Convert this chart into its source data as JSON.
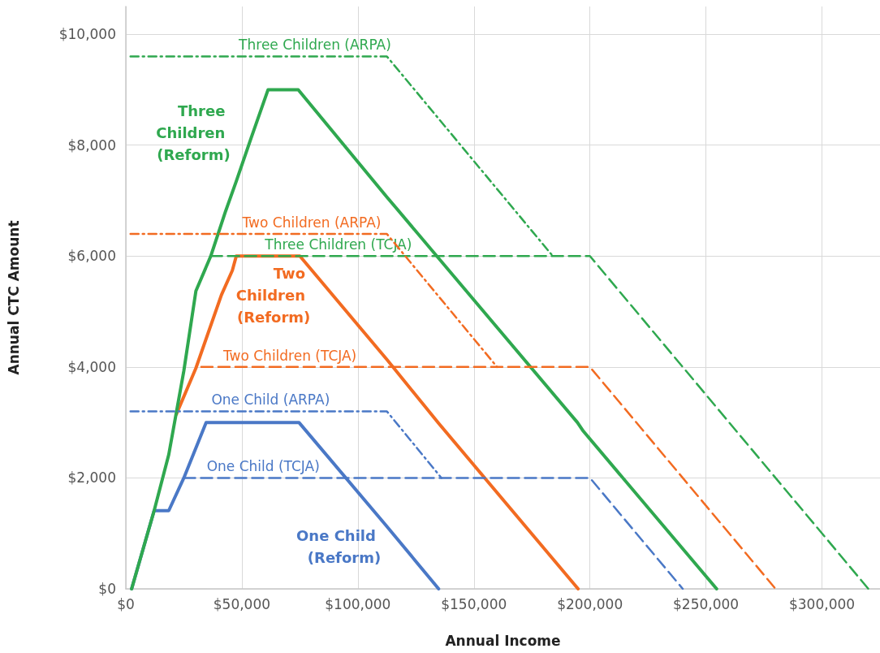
{
  "chart_data": {
    "type": "line",
    "xlabel": "Annual Income",
    "ylabel": "Annual CTC Amount",
    "xlim": [
      0,
      325000
    ],
    "ylim": [
      0,
      10500
    ],
    "xticks": [
      {
        "value": 0,
        "label": "$0"
      },
      {
        "value": 50000,
        "label": "$50,000"
      },
      {
        "value": 100000,
        "label": "$100,000"
      },
      {
        "value": 150000,
        "label": "$150,000"
      },
      {
        "value": 200000,
        "label": "$200,000"
      },
      {
        "value": 250000,
        "label": "$250,000"
      },
      {
        "value": 300000,
        "label": "$300,000"
      }
    ],
    "yticks": [
      {
        "value": 0,
        "label": "$0"
      },
      {
        "value": 2000,
        "label": "$2,000"
      },
      {
        "value": 4000,
        "label": "$4,000"
      },
      {
        "value": 6000,
        "label": "$6,000"
      },
      {
        "value": 8000,
        "label": "$8,000"
      },
      {
        "value": 10000,
        "label": "$10,000"
      }
    ],
    "grid": true,
    "marker": "none",
    "series": [
      {
        "color": "#4a78c6",
        "line_style": "solid",
        "x": [
          2500,
          12200,
          18500,
          25000,
          34600,
          74600,
          112000,
          134800
        ],
        "values": [
          0,
          1410,
          1410,
          2000,
          3000,
          3000,
          1150,
          0
        ]
      },
      {
        "color": "#f26b21",
        "line_style": "solid",
        "x": [
          21800,
          30200,
          41200,
          45900,
          47600,
          75000,
          112600,
          134900,
          194900
        ],
        "values": [
          3150,
          3980,
          5300,
          5740,
          6000,
          6000,
          4130,
          2980,
          0
        ]
      },
      {
        "color": "#2fa84f",
        "line_style": "solid",
        "x": [
          2500,
          12200,
          18500,
          25000,
          30200,
          36600,
          43000,
          47600,
          54000,
          61300,
          74300,
          112600,
          194600,
          197200,
          254600
        ],
        "values": [
          0,
          1410,
          2420,
          3930,
          5370,
          6000,
          6810,
          7350,
          8130,
          9000,
          9000,
          7060,
          3000,
          2840,
          0
        ]
      },
      {
        "color": "#4a78c6",
        "line_style": "dashed",
        "x": [
          25000,
          200000,
          240000
        ],
        "values": [
          2000,
          2000,
          0
        ]
      },
      {
        "color": "#f26b21",
        "line_style": "dashed",
        "x": [
          32500,
          200000,
          280000
        ],
        "values": [
          4000,
          4000,
          0
        ]
      },
      {
        "color": "#2fa84f",
        "line_style": "dashed",
        "x": [
          36600,
          200000,
          320000
        ],
        "values": [
          6000,
          6000,
          0
        ]
      },
      {
        "color": "#4a78c6",
        "line_style": "dotted",
        "x": [
          2000,
          112500,
          136000
        ],
        "values": [
          3200,
          3200,
          2000
        ]
      },
      {
        "color": "#f26b21",
        "line_style": "dotted",
        "x": [
          2000,
          112500,
          160000
        ],
        "values": [
          6400,
          6400,
          4000
        ]
      },
      {
        "color": "#2fa84f",
        "line_style": "dotted",
        "x": [
          2000,
          112500,
          184000
        ],
        "values": [
          9600,
          9600,
          6000
        ]
      }
    ],
    "annotations": [
      {
        "text": "One Child (Reform)",
        "x": 119700,
        "y": 760
      },
      {
        "text": "Two Children (Reform)",
        "x": 89300,
        "y": 5290
      },
      {
        "text": "Three Children (Reform)",
        "x": 54800,
        "y": 8230
      },
      {
        "text": "One Child (TCJA)",
        "x": 59200,
        "y": 2000
      },
      {
        "text": "Two Children (TCJA)",
        "x": 70700,
        "y": 4000
      },
      {
        "text": "Three Children (TCJA)",
        "x": 91600,
        "y": 6000
      },
      {
        "text": "One Child (ARPA)",
        "x": 62400,
        "y": 3200
      },
      {
        "text": "Two Children (ARPA)",
        "x": 80100,
        "y": 6400
      },
      {
        "text": "Three Children (ARPA)",
        "x": 81500,
        "y": 9600
      }
    ]
  }
}
